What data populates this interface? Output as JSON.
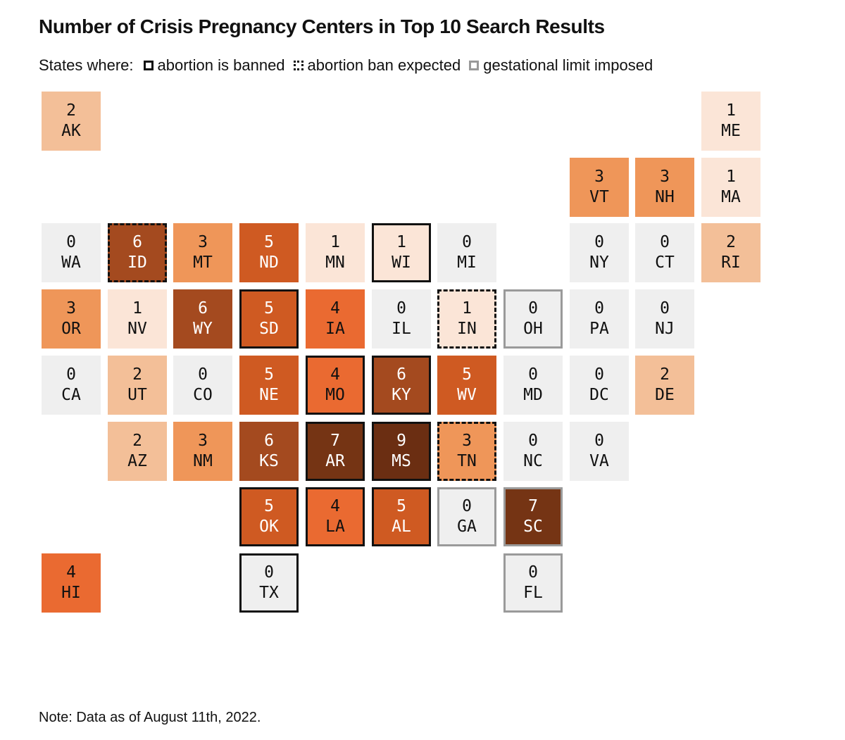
{
  "chart_data": {
    "type": "heatmap",
    "title": "Number of Crisis Pregnancy Centers in Top 10 Search Results",
    "legend": {
      "prefix": "States where:",
      "items": [
        {
          "key": "banned",
          "label": "abortion is banned"
        },
        {
          "key": "expected",
          "label": "abortion ban expected"
        },
        {
          "key": "limit",
          "label": "gestational limit imposed"
        }
      ]
    },
    "note": "Note: Data as of August 11th, 2022.",
    "color_scale": {
      "0": "#efefef",
      "1": "#fbe5d7",
      "2": "#f3bf98",
      "3": "#ef9659",
      "4": "#ea6a31",
      "5": "#cf5a22",
      "6": "#a44a1f",
      "7": "#753414",
      "9": "#6b2e12"
    },
    "states": [
      {
        "code": "AK",
        "value": 2,
        "row": 0,
        "col": 0,
        "status": ""
      },
      {
        "code": "ME",
        "value": 1,
        "row": 0,
        "col": 10,
        "status": ""
      },
      {
        "code": "VT",
        "value": 3,
        "row": 1,
        "col": 8,
        "status": ""
      },
      {
        "code": "NH",
        "value": 3,
        "row": 1,
        "col": 9,
        "status": ""
      },
      {
        "code": "MA",
        "value": 1,
        "row": 1,
        "col": 10,
        "status": ""
      },
      {
        "code": "WA",
        "value": 0,
        "row": 2,
        "col": 0,
        "status": ""
      },
      {
        "code": "ID",
        "value": 6,
        "row": 2,
        "col": 1,
        "status": "expected"
      },
      {
        "code": "MT",
        "value": 3,
        "row": 2,
        "col": 2,
        "status": ""
      },
      {
        "code": "ND",
        "value": 5,
        "row": 2,
        "col": 3,
        "status": ""
      },
      {
        "code": "MN",
        "value": 1,
        "row": 2,
        "col": 4,
        "status": ""
      },
      {
        "code": "WI",
        "value": 1,
        "row": 2,
        "col": 5,
        "status": "banned"
      },
      {
        "code": "MI",
        "value": 0,
        "row": 2,
        "col": 6,
        "status": ""
      },
      {
        "code": "NY",
        "value": 0,
        "row": 2,
        "col": 8,
        "status": ""
      },
      {
        "code": "CT",
        "value": 0,
        "row": 2,
        "col": 9,
        "status": ""
      },
      {
        "code": "RI",
        "value": 2,
        "row": 2,
        "col": 10,
        "status": ""
      },
      {
        "code": "OR",
        "value": 3,
        "row": 3,
        "col": 0,
        "status": ""
      },
      {
        "code": "NV",
        "value": 1,
        "row": 3,
        "col": 1,
        "status": ""
      },
      {
        "code": "WY",
        "value": 6,
        "row": 3,
        "col": 2,
        "status": ""
      },
      {
        "code": "SD",
        "value": 5,
        "row": 3,
        "col": 3,
        "status": "banned"
      },
      {
        "code": "IA",
        "value": 4,
        "row": 3,
        "col": 4,
        "status": ""
      },
      {
        "code": "IL",
        "value": 0,
        "row": 3,
        "col": 5,
        "status": ""
      },
      {
        "code": "IN",
        "value": 1,
        "row": 3,
        "col": 6,
        "status": "expected"
      },
      {
        "code": "OH",
        "value": 0,
        "row": 3,
        "col": 7,
        "status": "limit"
      },
      {
        "code": "PA",
        "value": 0,
        "row": 3,
        "col": 8,
        "status": ""
      },
      {
        "code": "NJ",
        "value": 0,
        "row": 3,
        "col": 9,
        "status": ""
      },
      {
        "code": "CA",
        "value": 0,
        "row": 4,
        "col": 0,
        "status": ""
      },
      {
        "code": "UT",
        "value": 2,
        "row": 4,
        "col": 1,
        "status": ""
      },
      {
        "code": "CO",
        "value": 0,
        "row": 4,
        "col": 2,
        "status": ""
      },
      {
        "code": "NE",
        "value": 5,
        "row": 4,
        "col": 3,
        "status": ""
      },
      {
        "code": "MO",
        "value": 4,
        "row": 4,
        "col": 4,
        "status": "banned"
      },
      {
        "code": "KY",
        "value": 6,
        "row": 4,
        "col": 5,
        "status": "banned"
      },
      {
        "code": "WV",
        "value": 5,
        "row": 4,
        "col": 6,
        "status": ""
      },
      {
        "code": "MD",
        "value": 0,
        "row": 4,
        "col": 7,
        "status": ""
      },
      {
        "code": "DC",
        "value": 0,
        "row": 4,
        "col": 8,
        "status": ""
      },
      {
        "code": "DE",
        "value": 2,
        "row": 4,
        "col": 9,
        "status": ""
      },
      {
        "code": "AZ",
        "value": 2,
        "row": 5,
        "col": 1,
        "status": ""
      },
      {
        "code": "NM",
        "value": 3,
        "row": 5,
        "col": 2,
        "status": ""
      },
      {
        "code": "KS",
        "value": 6,
        "row": 5,
        "col": 3,
        "status": ""
      },
      {
        "code": "AR",
        "value": 7,
        "row": 5,
        "col": 4,
        "status": "banned"
      },
      {
        "code": "MS",
        "value": 9,
        "row": 5,
        "col": 5,
        "status": "banned"
      },
      {
        "code": "TN",
        "value": 3,
        "row": 5,
        "col": 6,
        "status": "expected"
      },
      {
        "code": "NC",
        "value": 0,
        "row": 5,
        "col": 7,
        "status": ""
      },
      {
        "code": "VA",
        "value": 0,
        "row": 5,
        "col": 8,
        "status": ""
      },
      {
        "code": "OK",
        "value": 5,
        "row": 6,
        "col": 3,
        "status": "banned"
      },
      {
        "code": "LA",
        "value": 4,
        "row": 6,
        "col": 4,
        "status": "banned"
      },
      {
        "code": "AL",
        "value": 5,
        "row": 6,
        "col": 5,
        "status": "banned"
      },
      {
        "code": "GA",
        "value": 0,
        "row": 6,
        "col": 6,
        "status": "limit"
      },
      {
        "code": "SC",
        "value": 7,
        "row": 6,
        "col": 7,
        "status": "limit"
      },
      {
        "code": "HI",
        "value": 4,
        "row": 7,
        "col": 0,
        "status": ""
      },
      {
        "code": "TX",
        "value": 0,
        "row": 7,
        "col": 3,
        "status": "banned"
      },
      {
        "code": "FL",
        "value": 0,
        "row": 7,
        "col": 7,
        "status": "limit"
      }
    ]
  }
}
